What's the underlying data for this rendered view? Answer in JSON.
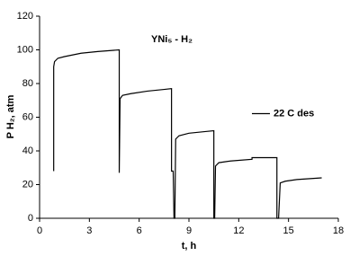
{
  "chart_data": {
    "type": "line",
    "title": "YNi₅ - H₂",
    "x_label": "t, h",
    "y_label": "P H₂, atm",
    "xlim": [
      0,
      18
    ],
    "xticks": [
      0,
      3,
      6,
      9,
      12,
      15,
      18
    ],
    "ylim": [
      0,
      120
    ],
    "yticks": [
      0,
      20,
      40,
      60,
      80,
      100,
      120
    ],
    "grid": false,
    "legend": "center right",
    "series": [
      {
        "name": "22 C des",
        "color": "#000000",
        "x": [
          0.85,
          0.85,
          0.9,
          1.1,
          1.5,
          2.5,
          3.5,
          4.8,
          4.8,
          4.85,
          5.0,
          5.5,
          6.5,
          7.5,
          7.95,
          7.95,
          8.05,
          8.1,
          8.15,
          8.2,
          8.4,
          9,
          10,
          10.5,
          10.5,
          10.55,
          10.6,
          10.8,
          11.5,
          12.8,
          12.8,
          14.3,
          14.3,
          14.4,
          14.5,
          14.8,
          15.5,
          17.0
        ],
        "values": [
          28,
          90,
          93,
          95,
          96,
          98,
          99,
          100,
          27,
          71,
          73,
          74,
          75.5,
          76.5,
          77,
          28,
          28,
          0,
          0,
          47,
          49,
          50.5,
          51.5,
          52,
          0,
          0,
          31,
          33,
          34,
          35,
          36,
          36,
          0,
          0,
          21,
          22,
          23,
          24
        ]
      }
    ]
  }
}
